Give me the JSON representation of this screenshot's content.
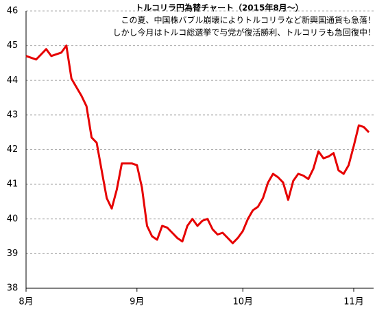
{
  "chart_data": {
    "type": "line",
    "title": "トルコリラ円為替チャート（2015年8月～）",
    "subtitle": [
      "この夏、中国株バブル崩壊によりトルコリラなど新興国通貨も急落！",
      "しかし今月はトルコ総選挙で与党が復活勝利、トルコリラも急回復中！"
    ],
    "categories": [
      "8月",
      null,
      null,
      null,
      null,
      null,
      null,
      null,
      null,
      null,
      null,
      null,
      null,
      null,
      null,
      null,
      null,
      null,
      null,
      null,
      null,
      null,
      "9月",
      null,
      null,
      null,
      null,
      null,
      null,
      null,
      null,
      null,
      null,
      null,
      null,
      null,
      null,
      null,
      null,
      null,
      null,
      null,
      null,
      "10月",
      null,
      null,
      null,
      null,
      null,
      null,
      null,
      null,
      null,
      null,
      null,
      null,
      null,
      null,
      null,
      null,
      null,
      null,
      null,
      null,
      null,
      "11月",
      null,
      null,
      null
    ],
    "series": [
      {
        "color": "#e60000",
        "values": [
          44.7,
          44.65,
          44.6,
          44.75,
          44.9,
          44.7,
          44.75,
          44.8,
          45.0,
          44.05,
          43.8,
          43.55,
          43.25,
          42.35,
          42.2,
          41.4,
          40.6,
          40.3,
          40.85,
          41.6,
          41.6,
          41.6,
          41.55,
          40.9,
          39.8,
          39.5,
          39.4,
          39.8,
          39.75,
          39.6,
          39.45,
          39.35,
          39.8,
          40.0,
          39.8,
          39.95,
          40.0,
          39.7,
          39.55,
          39.6,
          39.45,
          39.3,
          39.45,
          39.65,
          40.0,
          40.25,
          40.35,
          40.6,
          41.05,
          41.3,
          41.2,
          41.05,
          40.55,
          41.1,
          41.3,
          41.25,
          41.15,
          41.45,
          41.95,
          41.75,
          41.8,
          41.9,
          41.4,
          41.3,
          41.55,
          42.1,
          42.7,
          42.65,
          42.5
        ]
      }
    ],
    "ylim": [
      38,
      46
    ],
    "yticks": [
      38,
      39,
      40,
      41,
      42,
      43,
      44,
      45,
      46
    ],
    "grid": true
  }
}
